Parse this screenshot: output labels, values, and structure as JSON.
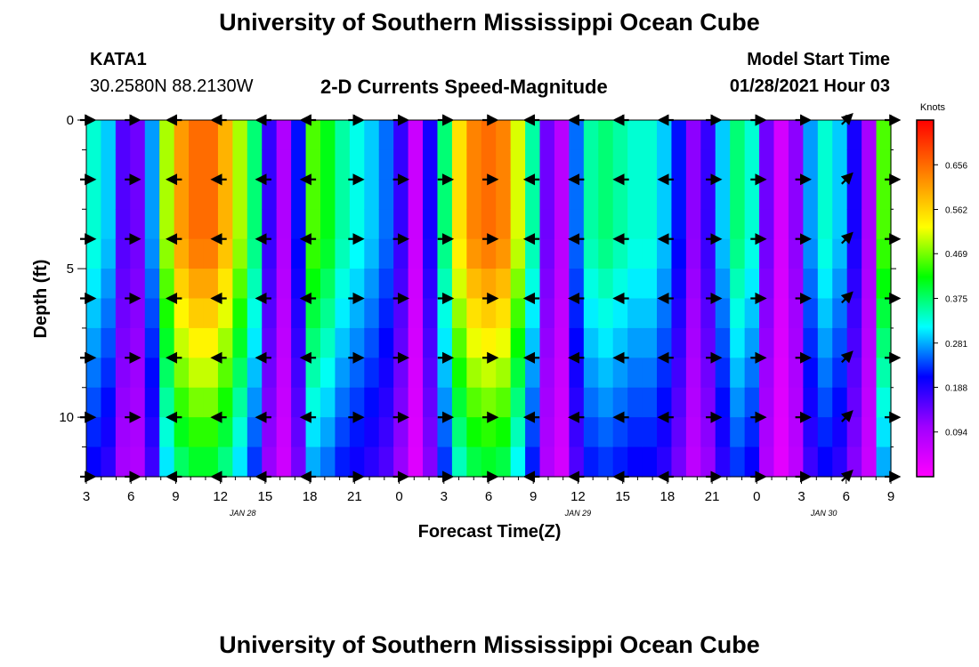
{
  "header": {
    "title": "University of Southern Mississippi Ocean Cube",
    "station": "KATA1",
    "coords": "30.2580N 88.2130W",
    "subtitle": "2-D Currents Speed-Magnitude",
    "model_label": "Model Start Time",
    "model_time": "01/28/2021 Hour 03"
  },
  "footer": {
    "title": "University of Southern Mississippi Ocean Cube"
  },
  "chart_data": {
    "type": "heatmap",
    "title": "2-D Currents Speed-Magnitude",
    "xlabel": "Forecast Time(Z)",
    "ylabel": "Depth (ft)",
    "x_ticks": [
      "3",
      "6",
      "9",
      "12",
      "15",
      "18",
      "21",
      "0",
      "3",
      "6",
      "9",
      "12",
      "15",
      "18",
      "21",
      "0",
      "3",
      "6",
      "9"
    ],
    "x_tick_hours": [
      0,
      3,
      6,
      9,
      12,
      15,
      18,
      21,
      24,
      27,
      30,
      33,
      36,
      39,
      42,
      45,
      48,
      51,
      54
    ],
    "x_range_hours": [
      0,
      54
    ],
    "date_labels": [
      {
        "label": "JAN 28",
        "hour": 10.5
      },
      {
        "label": "JAN 29",
        "hour": 33
      },
      {
        "label": "JAN 30",
        "hour": 49.5
      }
    ],
    "y_ticks": [
      "0",
      "5",
      "10"
    ],
    "y_tick_values": [
      0,
      5,
      10
    ],
    "ylim": [
      0,
      12
    ],
    "depth_levels": [
      0,
      1,
      2,
      3,
      4,
      5,
      6,
      7,
      8,
      9,
      10,
      11,
      12
    ],
    "colorbar": {
      "label": "Knots",
      "ticks": [
        "0.656",
        "0.562",
        "0.469",
        "0.375",
        "0.281",
        "0.188",
        "0.094"
      ],
      "tick_values": [
        0.656,
        0.562,
        0.469,
        0.375,
        0.281,
        0.188,
        0.094
      ],
      "range": [
        0,
        0.75
      ],
      "colors": [
        "#ff00ff",
        "#a000ff",
        "#0000ff",
        "#00ffff",
        "#00ff00",
        "#ffff00",
        "#ff8000",
        "#ff0000"
      ]
    },
    "surface_speed_knots": [
      0.34,
      0.3,
      0.16,
      0.14,
      0.28,
      0.5,
      0.62,
      0.66,
      0.66,
      0.6,
      0.5,
      0.38,
      0.18,
      0.09,
      0.22,
      0.46,
      0.42,
      0.36,
      0.33,
      0.3,
      0.26,
      0.18,
      0.06,
      0.2,
      0.38,
      0.56,
      0.64,
      0.66,
      0.64,
      0.52,
      0.36,
      0.14,
      0.08,
      0.26,
      0.36,
      0.38,
      0.36,
      0.34,
      0.34,
      0.3,
      0.22,
      0.12,
      0.18,
      0.3,
      0.38,
      0.34,
      0.14,
      0.05,
      0.12,
      0.28,
      0.34,
      0.3,
      0.2,
      0.1,
      0.46
    ],
    "bottom_factor": 0.6,
    "vector_hours": [
      0,
      3,
      6,
      9,
      12,
      15,
      18,
      21,
      24,
      27,
      30,
      33,
      36,
      39,
      42,
      45,
      48,
      51,
      54
    ],
    "vector_depths": [
      0,
      2,
      4,
      6,
      8,
      10,
      12
    ],
    "vector_direction_deg": [
      0,
      0,
      180,
      180,
      180,
      180,
      0,
      0,
      0,
      0,
      180,
      180,
      180,
      180,
      0,
      0,
      0,
      45,
      0
    ]
  }
}
